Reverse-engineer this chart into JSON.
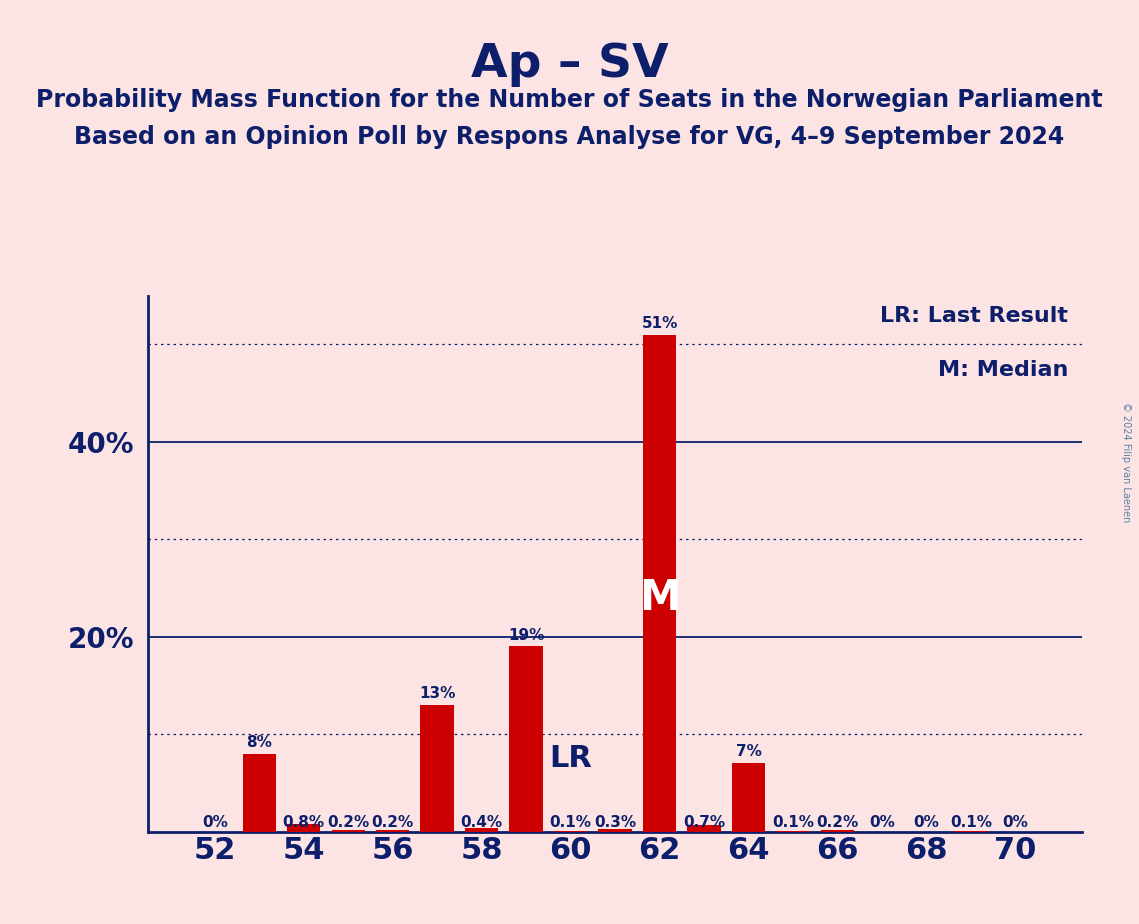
{
  "title": "Ap – SV",
  "subtitle1": "Probability Mass Function for the Number of Seats in the Norwegian Parliament",
  "subtitle2": "Based on an Opinion Poll by Respons Analyse for VG, 4–9 September 2024",
  "copyright": "© 2024 Filip van Laenen",
  "seats": [
    52,
    53,
    54,
    55,
    56,
    57,
    58,
    59,
    60,
    61,
    62,
    63,
    64,
    65,
    66,
    67,
    68,
    69,
    70
  ],
  "probabilities": [
    0.0,
    8.0,
    0.8,
    0.2,
    0.2,
    13.0,
    0.4,
    19.0,
    0.1,
    0.3,
    51.0,
    0.7,
    7.0,
    0.1,
    0.2,
    0.0,
    0.0,
    0.1,
    0.0
  ],
  "labels": [
    "0%",
    "8%",
    "0.8%",
    "0.2%",
    "0.2%",
    "13%",
    "0.4%",
    "19%",
    "0.1%",
    "0.3%",
    "51%",
    "0.7%",
    "7%",
    "0.1%",
    "0.2%",
    "0%",
    "0%",
    "0.1%",
    "0%"
  ],
  "bar_color": "#cc0000",
  "background_color": "#fce4e4",
  "text_color": "#0d1f6b",
  "title_fontsize": 34,
  "subtitle_fontsize": 17,
  "solid_lines": [
    20,
    40
  ],
  "dotted_lines": [
    10,
    30,
    50
  ],
  "lr_seat": 60,
  "median_seat": 62,
  "lr_label": "LR",
  "median_label": "M",
  "legend_lr": "LR: Last Result",
  "legend_m": "M: Median",
  "xtick_positions": [
    52,
    54,
    56,
    58,
    60,
    62,
    64,
    66,
    68,
    70
  ],
  "ylim": [
    0,
    55
  ],
  "xlim": [
    50.5,
    71.5
  ],
  "bar_width": 0.75,
  "ytick_label_fontsize": 20,
  "xtick_label_fontsize": 22,
  "bar_label_fontsize": 11,
  "lr_fontsize": 22,
  "median_fontsize": 30,
  "legend_fontsize": 16,
  "copyright_color": "#5b7fa6"
}
